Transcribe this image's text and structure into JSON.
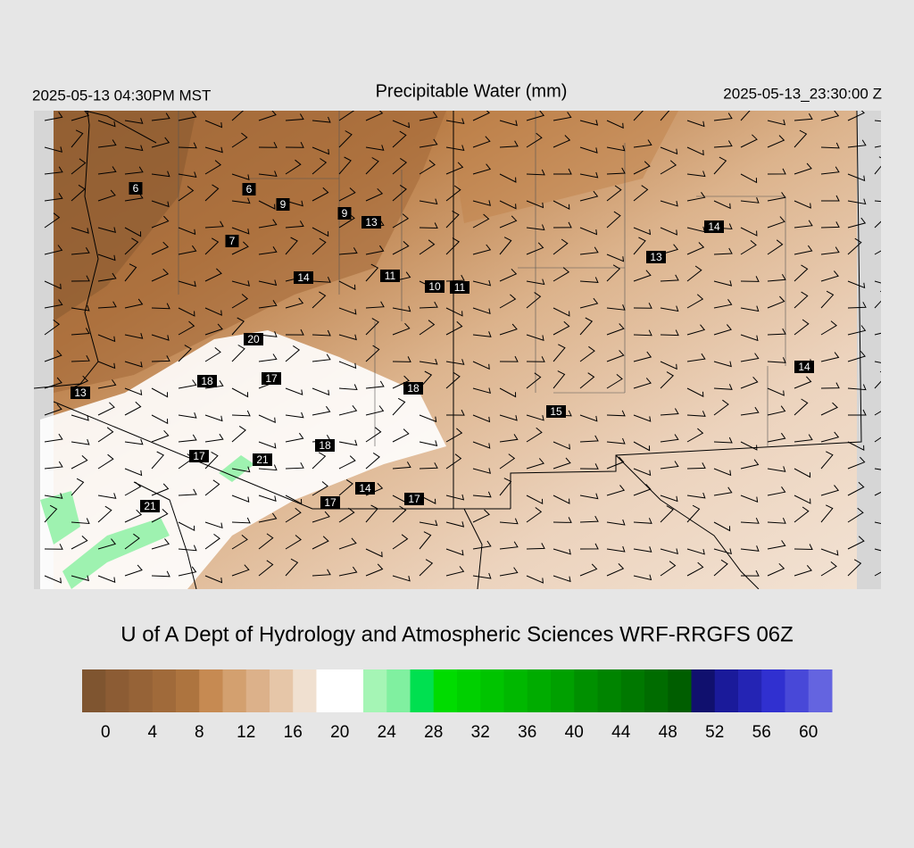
{
  "header": {
    "left": "2025-05-13 04:30PM MST",
    "title": "Precipitable Water (mm)",
    "right": "2025-05-13_23:30:00 Z"
  },
  "stations": [
    "6",
    "6",
    "9",
    "9",
    "13",
    "7",
    "14",
    "11",
    "10",
    "11",
    "14",
    "13",
    "20",
    "18",
    "17",
    "18",
    "13",
    "14",
    "15",
    "18",
    "17",
    "21",
    "14",
    "17",
    "17",
    "21"
  ],
  "footer": "U of A Dept of Hydrology and Atmospheric Sciences WRF-RRGFS 06Z",
  "colorbar": {
    "bins": [
      -2,
      0,
      2,
      4,
      6,
      8,
      10,
      12,
      14,
      16,
      18,
      20,
      22,
      24,
      26,
      28,
      30,
      32,
      34,
      36,
      38,
      40,
      42,
      44,
      46,
      48,
      50,
      52,
      54,
      56,
      58,
      60,
      62
    ],
    "colors": [
      "#7f5530",
      "#8c5c34",
      "#966337",
      "#a06a3a",
      "#ad743f",
      "#c68a52",
      "#d3a06f",
      "#dcb18a",
      "#e6c6a8",
      "#f0e0d0",
      "#ffffff",
      "#ffffff",
      "#a5f5b5",
      "#80f0a0",
      "#00e050",
      "#00dc00",
      "#00d000",
      "#00c400",
      "#00b800",
      "#00ac00",
      "#00a000",
      "#009000",
      "#008400",
      "#007800",
      "#006c00",
      "#005e00",
      "#10106e",
      "#1a1a9a",
      "#2424b4",
      "#3030d0",
      "#4848d8",
      "#6464e0"
    ],
    "ticks": [
      0,
      4,
      8,
      12,
      16,
      20,
      24,
      28,
      32,
      36,
      40,
      44,
      48,
      52,
      56,
      60
    ]
  }
}
